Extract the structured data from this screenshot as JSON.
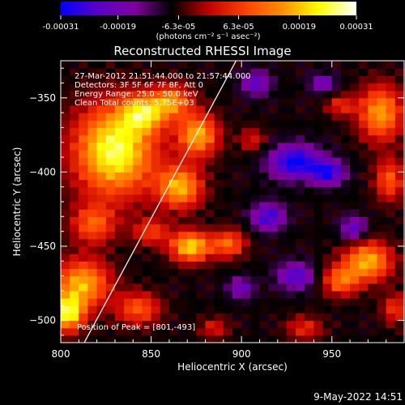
{
  "colorbar": {
    "ticks": [
      "-0.00031",
      "-0.00019",
      "-6.3e-05",
      "6.3e-05",
      "0.00019",
      "0.00031"
    ],
    "tick_values": [
      -0.00031,
      -0.00019,
      -6.3e-05,
      6.3e-05,
      0.00019,
      0.00031
    ],
    "range": [
      -0.00031,
      0.00031
    ],
    "units": "(photons cm⁻² s⁻¹ asec⁻²)"
  },
  "chart_data": {
    "type": "heatmap",
    "title": "Reconstructed RHESSI Image",
    "xlabel": "Heliocentric X (arcsec)",
    "ylabel": "Heliocentric Y (arcsec)",
    "xlim": [
      800,
      990
    ],
    "ylim": [
      -515,
      -325
    ],
    "xticks": [
      800,
      850,
      900,
      950
    ],
    "yticks": [
      -350,
      -400,
      -450,
      -500
    ],
    "colormap": [
      "#0000ff",
      "#5a00c8",
      "#8000a0",
      "#000000",
      "#c00000",
      "#ff4000",
      "#ff9000",
      "#ffff00",
      "#ffffff"
    ],
    "annotations": [
      "27-Mar-2012 21:51:44.000 to 21:57:44.000",
      "Detectors: 3F 5F 6F 7F 8F, Att 0",
      "Energy Range: 25.0 - 50.0 keV",
      "Clean     Total counts: 5.75E+03"
    ],
    "peak_label": "Position of Peak = [801,-493]",
    "peak": [
      801,
      -493
    ],
    "limb_line": {
      "x": [
        813,
        897
      ],
      "y": [
        -515,
        -325
      ]
    },
    "blobs": [
      {
        "x": 830,
        "y": -385,
        "w": 22,
        "h": 30,
        "a": 1.0
      },
      {
        "x": 846,
        "y": -360,
        "w": 12,
        "h": 12,
        "a": 0.7
      },
      {
        "x": 862,
        "y": -352,
        "w": 11,
        "h": 11,
        "a": 0.6
      },
      {
        "x": 876,
        "y": -375,
        "w": 11,
        "h": 14,
        "a": 0.75
      },
      {
        "x": 866,
        "y": -410,
        "w": 12,
        "h": 14,
        "a": 0.75
      },
      {
        "x": 818,
        "y": -435,
        "w": 12,
        "h": 13,
        "a": 0.5
      },
      {
        "x": 850,
        "y": -440,
        "w": 10,
        "h": 9,
        "a": 0.4
      },
      {
        "x": 872,
        "y": -450,
        "w": 11,
        "h": 10,
        "a": 0.85
      },
      {
        "x": 893,
        "y": -448,
        "w": 9,
        "h": 9,
        "a": 0.55
      },
      {
        "x": 812,
        "y": -475,
        "w": 15,
        "h": 16,
        "a": 0.75
      },
      {
        "x": 804,
        "y": -495,
        "w": 9,
        "h": 12,
        "a": 0.9
      },
      {
        "x": 843,
        "y": -492,
        "w": 12,
        "h": 11,
        "a": 0.5
      },
      {
        "x": 977,
        "y": -360,
        "w": 12,
        "h": 18,
        "a": 0.7
      },
      {
        "x": 982,
        "y": -405,
        "w": 8,
        "h": 14,
        "a": 0.5
      },
      {
        "x": 970,
        "y": -460,
        "w": 13,
        "h": 13,
        "a": 0.75
      },
      {
        "x": 955,
        "y": -473,
        "w": 10,
        "h": 10,
        "a": 0.55
      },
      {
        "x": 985,
        "y": -492,
        "w": 7,
        "h": 10,
        "a": 0.4
      },
      {
        "x": 935,
        "y": -505,
        "w": 10,
        "h": 8,
        "a": 0.35
      },
      {
        "x": 885,
        "y": -505,
        "w": 8,
        "h": 7,
        "a": 0.3
      },
      {
        "x": 955,
        "y": -355,
        "w": 8,
        "h": 7,
        "a": 0.35
      },
      {
        "x": 906,
        "y": -378,
        "w": 7,
        "h": 8,
        "a": 0.3
      },
      {
        "x": 930,
        "y": -393,
        "w": 14,
        "h": 11,
        "a": -0.7
      },
      {
        "x": 948,
        "y": -400,
        "w": 9,
        "h": 8,
        "a": -0.6
      },
      {
        "x": 915,
        "y": -430,
        "w": 9,
        "h": 9,
        "a": -0.55
      },
      {
        "x": 930,
        "y": -470,
        "w": 10,
        "h": 9,
        "a": -0.5
      },
      {
        "x": 908,
        "y": -340,
        "w": 8,
        "h": 8,
        "a": -0.45
      },
      {
        "x": 962,
        "y": -438,
        "w": 7,
        "h": 8,
        "a": -0.45
      },
      {
        "x": 900,
        "y": -478,
        "w": 7,
        "h": 7,
        "a": -0.4
      },
      {
        "x": 945,
        "y": -340,
        "w": 7,
        "h": 6,
        "a": -0.4
      }
    ]
  },
  "footer": {
    "date": "9-May-2022 14:51"
  }
}
